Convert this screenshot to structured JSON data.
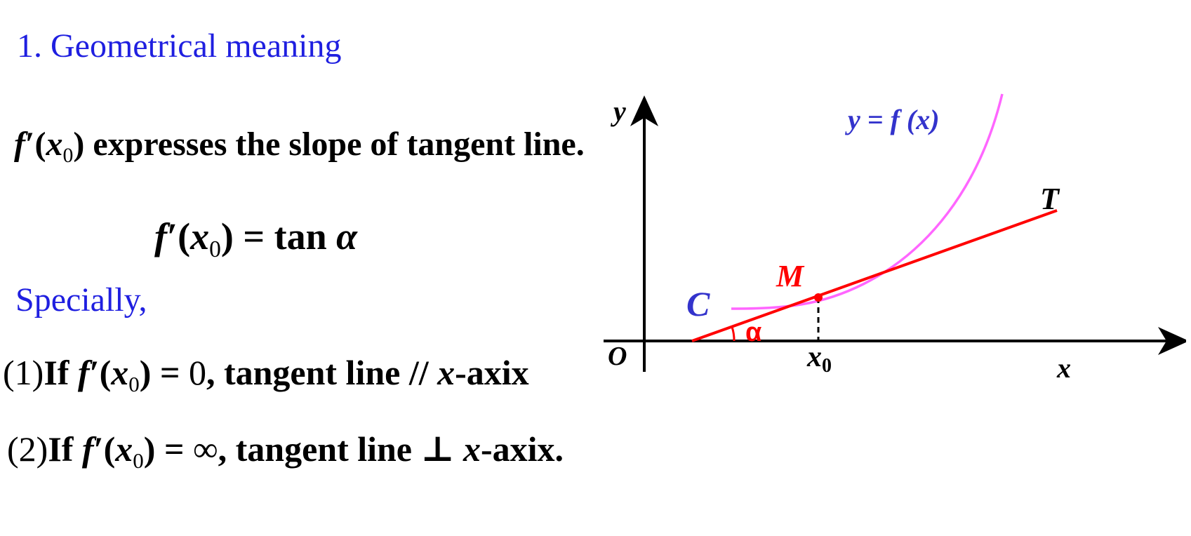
{
  "heading": "1. Geometrical meaning",
  "slope_statement": {
    "func": "f",
    "prime": "′",
    "open": "(",
    "var": "x",
    "sub": "0",
    "close": ")",
    "text": " expresses the slope of tangent line."
  },
  "formula": {
    "lhs_func": "f",
    "lhs_prime": "′",
    "open": "(",
    "var": "x",
    "sub": "0",
    "close": ")",
    "eq": " = tan",
    "alpha": "α"
  },
  "specially": "Specially,",
  "case1": {
    "num": "(1)",
    "if": "If ",
    "func": "f",
    "prime": "′",
    "open": "(",
    "var": "x",
    "sub": "0",
    "close": ")",
    "eq": " = ",
    "value": "0",
    "rest_a": ", tangent line // ",
    "axis_var": "x",
    "rest_b": "-axix"
  },
  "case2": {
    "num": "(2)",
    "if": "If ",
    "func": "f",
    "prime": "′",
    "open": "(",
    "var": "x",
    "sub": "0",
    "close": ")",
    "eq": " = ",
    "value": "∞",
    "rest_a": ", tangent line  ⊥  ",
    "axis_var": "x",
    "rest_b": "-axix."
  },
  "graph": {
    "y_axis_label": "y",
    "x_axis_label": "x",
    "origin_label": "O",
    "curve_label": "y = f (x)",
    "curve_name": "C",
    "point_label": "M",
    "tangent_label": "T",
    "angle_label": "α",
    "x0_var": "x",
    "x0_sub": "0",
    "colors": {
      "curve": "#ff66ff",
      "tangent": "#ff0000",
      "axes": "#000000",
      "curve_label": "#3333cc"
    }
  }
}
